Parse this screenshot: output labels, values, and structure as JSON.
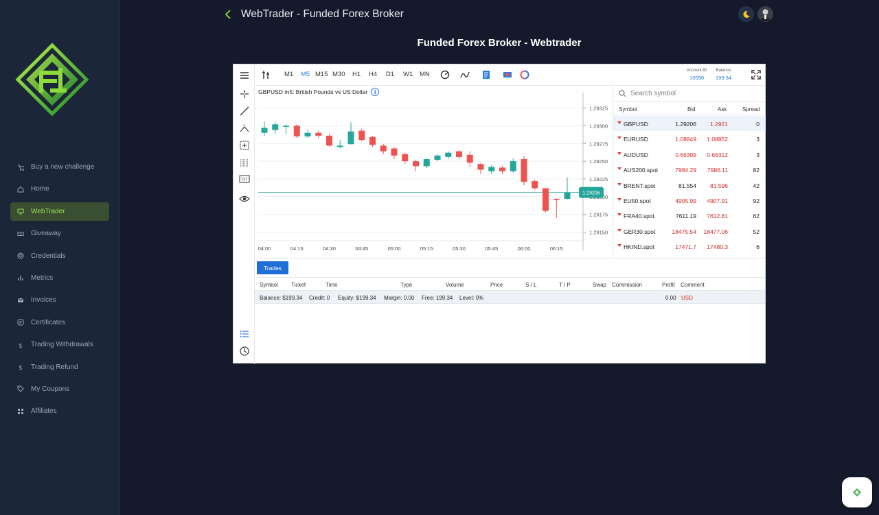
{
  "header": {
    "title": "WebTrader - Funded Forex Broker",
    "page_title": "Funded Forex Broker - Webtrader"
  },
  "sidebar": {
    "items": [
      {
        "label": "Buy a new challenge",
        "icon": "cart-icon"
      },
      {
        "label": "Home",
        "icon": "home-icon"
      },
      {
        "label": "WebTrader",
        "icon": "monitor-icon",
        "active": true
      },
      {
        "label": "Giveaway",
        "icon": "ticket-icon"
      },
      {
        "label": "Credentials",
        "icon": "fingerprint-icon"
      },
      {
        "label": "Metrics",
        "icon": "bar-chart-icon"
      },
      {
        "label": "Invoices",
        "icon": "mail-icon"
      },
      {
        "label": "Certificates",
        "icon": "certificate-icon"
      },
      {
        "label": "Trading Withdrawals",
        "icon": "dollar-icon"
      },
      {
        "label": "Trading Refund",
        "icon": "dollar-icon"
      },
      {
        "label": "My Coupons",
        "icon": "tag-icon"
      },
      {
        "label": "Affiliates",
        "icon": "affiliates-icon"
      }
    ]
  },
  "toolbar": {
    "timeframes": [
      "M1",
      "M5",
      "M15",
      "M30",
      "H1",
      "H4",
      "D1",
      "W1",
      "MN"
    ],
    "active_timeframe": "M5",
    "account_id_label": "Account ID",
    "account_id": "10090",
    "balance_label": "Balance",
    "balance": "199.34"
  },
  "chart": {
    "title": "GBPUSD m5: British Pounds vs US Dollar",
    "current_price_label": "1.29206"
  },
  "chart_data": {
    "type": "candlestick",
    "title": "GBPUSD m5: British Pounds vs US Dollar",
    "x_ticks": [
      "04:00",
      "04:15",
      "04:30",
      "04:45",
      "05:00",
      "05:15",
      "05:30",
      "05:45",
      "06:00",
      "06:15"
    ],
    "y_ticks": [
      "1.29325",
      "1.29300",
      "1.29275",
      "1.29250",
      "1.29225",
      "1.29200",
      "1.29175",
      "1.29150"
    ],
    "ylim": [
      1.29138,
      1.2934
    ],
    "current_price": 1.29206,
    "candles": [
      {
        "t": "04:00",
        "o": 1.2929,
        "h": 1.29306,
        "l": 1.29286,
        "c": 1.29297
      },
      {
        "t": "04:05",
        "o": 1.29294,
        "h": 1.29305,
        "l": 1.29289,
        "c": 1.29302
      },
      {
        "t": "04:10",
        "o": 1.293,
        "h": 1.29302,
        "l": 1.29288,
        "c": 1.293
      },
      {
        "t": "04:15",
        "o": 1.293,
        "h": 1.29302,
        "l": 1.29283,
        "c": 1.29285
      },
      {
        "t": "04:20",
        "o": 1.29285,
        "h": 1.29294,
        "l": 1.29283,
        "c": 1.2929
      },
      {
        "t": "04:25",
        "o": 1.2929,
        "h": 1.29293,
        "l": 1.29283,
        "c": 1.29286
      },
      {
        "t": "04:30",
        "o": 1.29286,
        "h": 1.29288,
        "l": 1.2927,
        "c": 1.29272
      },
      {
        "t": "04:35",
        "o": 1.2927,
        "h": 1.2928,
        "l": 1.29268,
        "c": 1.29272
      },
      {
        "t": "04:40",
        "o": 1.29274,
        "h": 1.29305,
        "l": 1.29274,
        "c": 1.29292
      },
      {
        "t": "04:45",
        "o": 1.29293,
        "h": 1.29296,
        "l": 1.29278,
        "c": 1.2928
      },
      {
        "t": "04:50",
        "o": 1.29284,
        "h": 1.29286,
        "l": 1.2927,
        "c": 1.29273
      },
      {
        "t": "04:55",
        "o": 1.29272,
        "h": 1.29274,
        "l": 1.2926,
        "c": 1.29264
      },
      {
        "t": "05:00",
        "o": 1.29268,
        "h": 1.2927,
        "l": 1.29253,
        "c": 1.29258
      },
      {
        "t": "05:05",
        "o": 1.2926,
        "h": 1.29262,
        "l": 1.29246,
        "c": 1.2925
      },
      {
        "t": "05:10",
        "o": 1.2925,
        "h": 1.29252,
        "l": 1.29236,
        "c": 1.29243
      },
      {
        "t": "05:15",
        "o": 1.29243,
        "h": 1.29254,
        "l": 1.2924,
        "c": 1.29253
      },
      {
        "t": "05:20",
        "o": 1.29252,
        "h": 1.2926,
        "l": 1.2925,
        "c": 1.29258
      },
      {
        "t": "05:25",
        "o": 1.29256,
        "h": 1.29264,
        "l": 1.29253,
        "c": 1.29262
      },
      {
        "t": "05:30",
        "o": 1.29264,
        "h": 1.29266,
        "l": 1.29253,
        "c": 1.29256
      },
      {
        "t": "05:35",
        "o": 1.29259,
        "h": 1.29264,
        "l": 1.29242,
        "c": 1.29248
      },
      {
        "t": "05:40",
        "o": 1.29246,
        "h": 1.29248,
        "l": 1.29232,
        "c": 1.29238
      },
      {
        "t": "05:45",
        "o": 1.29236,
        "h": 1.29245,
        "l": 1.29232,
        "c": 1.29242
      },
      {
        "t": "05:50",
        "o": 1.29241,
        "h": 1.29243,
        "l": 1.29232,
        "c": 1.29236
      },
      {
        "t": "05:55",
        "o": 1.29236,
        "h": 1.29254,
        "l": 1.29234,
        "c": 1.2925
      },
      {
        "t": "06:00",
        "o": 1.29253,
        "h": 1.29257,
        "l": 1.29216,
        "c": 1.29221
      },
      {
        "t": "06:05",
        "o": 1.29222,
        "h": 1.29224,
        "l": 1.2921,
        "c": 1.29212
      },
      {
        "t": "06:10",
        "o": 1.29212,
        "h": 1.29212,
        "l": 1.29178,
        "c": 1.2918
      },
      {
        "t": "06:15",
        "o": 1.29197,
        "h": 1.29198,
        "l": 1.2917,
        "c": 1.29196
      },
      {
        "t": "06:20",
        "o": 1.29197,
        "h": 1.29227,
        "l": 1.29196,
        "c": 1.29206
      }
    ]
  },
  "symbols": {
    "search_placeholder": "Search symbol",
    "headers": {
      "symbol": "Symbol",
      "bid": "Bid",
      "ask": "Ask",
      "spread": "Spread"
    },
    "rows": [
      {
        "symbol": "GBPUSD",
        "bid": "1.29206",
        "ask": "1.2921",
        "spread": "0",
        "bid_red": false
      },
      {
        "symbol": "EURUSD",
        "bid": "1.08849",
        "ask": "1.08852",
        "spread": "3",
        "bid_red": true
      },
      {
        "symbol": "AUDUSD",
        "bid": "0.66309",
        "ask": "0.66312",
        "spread": "3",
        "bid_red": true
      },
      {
        "symbol": "AUS200.spot",
        "bid": "7984.29",
        "ask": "7986.11",
        "spread": "82",
        "bid_red": true
      },
      {
        "symbol": "BRENT.spot",
        "bid": "81.554",
        "ask": "81.596",
        "spread": "42",
        "bid_red": false
      },
      {
        "symbol": "EU50.spot",
        "bid": "4905.99",
        "ask": "4907.91",
        "spread": "92",
        "bid_red": true
      },
      {
        "symbol": "FRA40.spot",
        "bid": "7611.19",
        "ask": "7612.81",
        "spread": "62",
        "bid_red": false
      },
      {
        "symbol": "GER30.spot",
        "bid": "18475.54",
        "ask": "18477.06",
        "spread": "52",
        "bid_red": true
      },
      {
        "symbol": "HKIND.spot",
        "bid": "17471.7",
        "ask": "17480.3",
        "spread": "6",
        "bid_red": true
      }
    ]
  },
  "trades": {
    "tab_label": "Trades",
    "columns": {
      "symbol": "Symbol",
      "ticket": "Ticket",
      "time": "Time",
      "type": "Type",
      "volume": "Volume",
      "price": "Price",
      "sl": "S / L",
      "tp": "T / P",
      "swap": "Swap",
      "commission": "Commission",
      "profit": "Profit",
      "comment": "Comment"
    },
    "summary": {
      "balance": "Balance: $199.34",
      "credit": "Credit: 0",
      "equity": "Equity: $199.34",
      "margin": "Margin: 0.00",
      "free": "Free: 199.34",
      "level": "Level: 0%",
      "profit": "0.00",
      "currency": "USD"
    }
  },
  "colors": {
    "accent_green": "#9be15d",
    "bull": "#26a69a",
    "bear": "#ef5350",
    "active_blue": "#2a7de1"
  }
}
